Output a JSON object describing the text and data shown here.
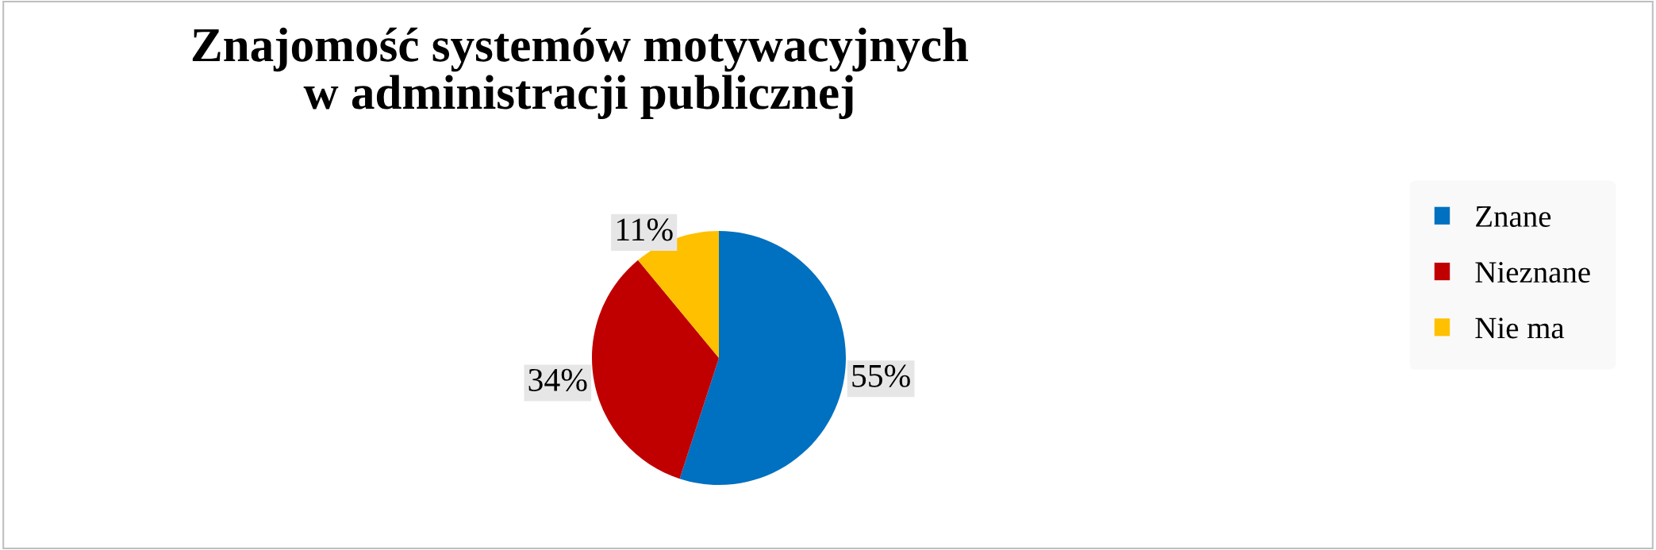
{
  "chart_data": {
    "type": "pie",
    "title": "Znajomość systemów motywacyjnych\nw administracji publicznej",
    "categories": [
      "Znane",
      "Nieznane",
      "Nie ma"
    ],
    "values": [
      55,
      34,
      11
    ],
    "colors": [
      "#0070c0",
      "#c00000",
      "#ffc000"
    ],
    "value_labels": [
      "55%",
      "34%",
      "11%"
    ],
    "legend": "right"
  }
}
